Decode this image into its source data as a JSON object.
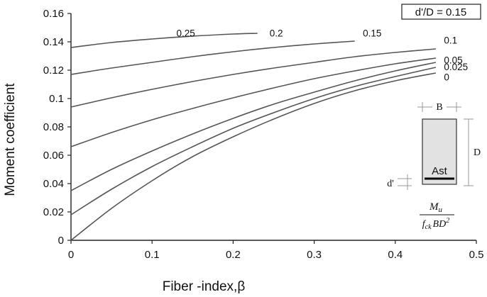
{
  "chart_data": {
    "type": "line",
    "xlabel": "Fiber -index,β",
    "ylabel": "Moment coefficient",
    "xlim": [
      0,
      0.5
    ],
    "ylim": [
      0,
      0.16
    ],
    "x_ticks": [
      "0",
      "0.1",
      "0.2",
      "0.3",
      "0.4",
      "0.5"
    ],
    "y_ticks": [
      "0",
      "0.02",
      "0.04",
      "0.06",
      "0.08",
      "0.1",
      "0.12",
      "0.14",
      "0.16"
    ],
    "annotation_box": "d'/D = 0.15",
    "series": [
      {
        "name": "0",
        "x": [
          0,
          0.05,
          0.1,
          0.15,
          0.2,
          0.25,
          0.3,
          0.35,
          0.4,
          0.45
        ],
        "y": [
          0,
          0.0225,
          0.042,
          0.059,
          0.073,
          0.0855,
          0.0965,
          0.1055,
          0.1125,
          0.118
        ]
      },
      {
        "name": "0.025",
        "x": [
          0,
          0.05,
          0.1,
          0.15,
          0.2,
          0.25,
          0.3,
          0.35,
          0.4,
          0.45
        ],
        "y": [
          0.018,
          0.036,
          0.052,
          0.066,
          0.079,
          0.09,
          0.1,
          0.1085,
          0.1155,
          0.122
        ]
      },
      {
        "name": "0.05",
        "x": [
          0,
          0.05,
          0.1,
          0.15,
          0.2,
          0.25,
          0.3,
          0.35,
          0.4,
          0.45
        ],
        "y": [
          0.035,
          0.05,
          0.063,
          0.075,
          0.086,
          0.096,
          0.1045,
          0.1125,
          0.1195,
          0.1255
        ]
      },
      {
        "name": "0.1",
        "x": [
          0,
          0.05,
          0.1,
          0.15,
          0.2,
          0.25,
          0.3,
          0.35,
          0.4,
          0.45
        ],
        "y": [
          0.066,
          0.076,
          0.085,
          0.093,
          0.1005,
          0.1075,
          0.114,
          0.1195,
          0.1245,
          0.1285
        ]
      },
      {
        "name": "0.15",
        "x": [
          0,
          0.05,
          0.1,
          0.15,
          0.2,
          0.25,
          0.3,
          0.35,
          0.4,
          0.45
        ],
        "y": [
          0.094,
          0.1005,
          0.1065,
          0.112,
          0.117,
          0.1215,
          0.1255,
          0.1295,
          0.1325,
          0.135
        ]
      },
      {
        "name": "0.2",
        "x": [
          0,
          0.05,
          0.1,
          0.15,
          0.2,
          0.25,
          0.3,
          0.35
        ],
        "y": [
          0.117,
          0.1215,
          0.1255,
          0.1295,
          0.133,
          0.136,
          0.1385,
          0.1405
        ]
      },
      {
        "name": "0.25",
        "x": [
          0,
          0.05,
          0.1,
          0.15,
          0.2,
          0.23
        ],
        "y": [
          0.136,
          0.1395,
          0.142,
          0.144,
          0.1455,
          0.146
        ]
      }
    ],
    "curve_labels": [
      {
        "text": "0.25",
        "x": 0.13,
        "y": 0.1463
      },
      {
        "text": "0.2",
        "x": 0.245,
        "y": 0.1463
      },
      {
        "text": "0.15",
        "x": 0.36,
        "y": 0.1463
      },
      {
        "text": "0.1",
        "x": 0.46,
        "y": 0.1413
      },
      {
        "text": "0.05",
        "x": 0.46,
        "y": 0.1273
      },
      {
        "text": "0.025",
        "x": 0.46,
        "y": 0.1226
      },
      {
        "text": "0",
        "x": 0.46,
        "y": 0.1153
      }
    ],
    "inset": {
      "width_label": "B",
      "depth_label": "D",
      "steel_label": "Ast",
      "cover_label": "d'",
      "formula_numerator": "M",
      "formula_numerator_sub": "u",
      "formula_denominator_f": "f",
      "formula_denominator_sub": "ck",
      "formula_denominator_rest": "BD",
      "formula_denominator_sup": "2"
    }
  }
}
